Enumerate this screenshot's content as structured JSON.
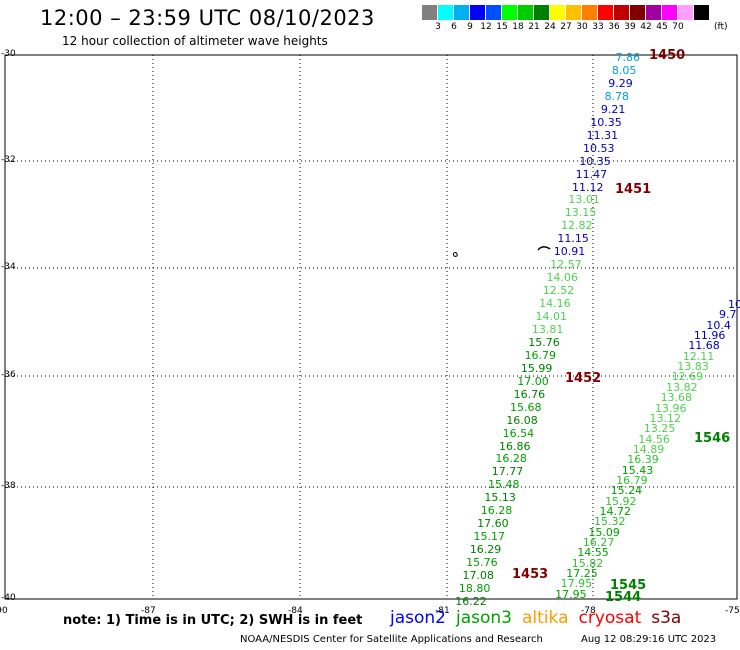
{
  "header": {
    "title": "12:00 – 23:59 UTC 08/10/2023",
    "subtitle": "12 hour collection of altimeter wave heights"
  },
  "colorbar": {
    "unit": "(ft)",
    "colors": [
      "#808080",
      "#00ffff",
      "#00b0f0",
      "#0000ff",
      "#0050ff",
      "#00ff00",
      "#00cc00",
      "#008000",
      "#ffff00",
      "#ffc000",
      "#ff8000",
      "#ff0000",
      "#c00000",
      "#800000",
      "#a000a0",
      "#ff00ff",
      "#ffa0ff",
      "#000000"
    ],
    "labels": [
      "3",
      "6",
      "9",
      "12",
      "15",
      "18",
      "21",
      "24",
      "27",
      "30",
      "33",
      "36",
      "39",
      "42",
      "45",
      "70"
    ]
  },
  "axes": {
    "lat_labels": [
      "-30",
      "-32",
      "-34",
      "-36",
      "-38",
      "-40"
    ],
    "lon_labels": [
      "-90",
      "-87",
      "-84",
      "-81",
      "-78",
      "-75"
    ]
  },
  "tracks": {
    "north": {
      "color_a": "#00a0d0",
      "color_b": "#0000c0",
      "color_c": "#50d050",
      "values": [
        "7.86",
        "8.05",
        "9.29",
        "8.78",
        "9.21",
        "10.35",
        "11.31",
        "10.53",
        "10.35",
        "11.47",
        "11.12",
        "13.01",
        "13.15",
        "12.82",
        "11.15",
        "10.91",
        "12.57",
        "14.06",
        "12.52",
        "14.16",
        "14.01",
        "13.81",
        "15.76",
        "16.79",
        "15.99",
        "17.00",
        "16.76",
        "15.68",
        "16.08",
        "16.54",
        "16.86",
        "16.28",
        "17.77",
        "15.48",
        "15.13",
        "16.28",
        "17.60",
        "15.17",
        "16.29",
        "15.76",
        "17.08",
        "18.80",
        "16.22"
      ]
    },
    "east": {
      "values": [
        "10",
        "9.7",
        "10.4",
        "11.96",
        "11.68",
        "12.11",
        "13.83",
        "12.69",
        "13.82",
        "13.68",
        "13.96",
        "13.12",
        "13.25",
        "14.56",
        "14.89",
        "16.39",
        "15.43",
        "16.79",
        "15.24",
        "15.92",
        "14.72",
        "15.32",
        "15.09",
        "16.27",
        "14.55",
        "15.82",
        "17.25",
        "17.95",
        "17.95"
      ]
    }
  },
  "time_labels": [
    {
      "text": "1450",
      "color": "#800000"
    },
    {
      "text": "1451",
      "color": "#800000"
    },
    {
      "text": "1452",
      "color": "#800000"
    },
    {
      "text": "1453",
      "color": "#800000"
    },
    {
      "text": "1546",
      "color": "#008000"
    },
    {
      "text": "1545",
      "color": "#008000"
    },
    {
      "text": "1544",
      "color": "#008000"
    }
  ],
  "footer": {
    "note": "note:  1) Time is in UTC;  2) SWH is in feet",
    "legend": [
      {
        "name": "jason2",
        "color": "#0000ff"
      },
      {
        "name": "jason3",
        "color": "#00a000"
      },
      {
        "name": "altika",
        "color": "#ff9900"
      },
      {
        "name": "cryosat",
        "color": "#ff0000"
      },
      {
        "name": "s3a",
        "color": "#800000"
      }
    ],
    "credit": "NOAA/NESDIS Center for Satellite Applications and Research",
    "timestamp": "Aug 12 08:29:16 UTC 2023"
  }
}
